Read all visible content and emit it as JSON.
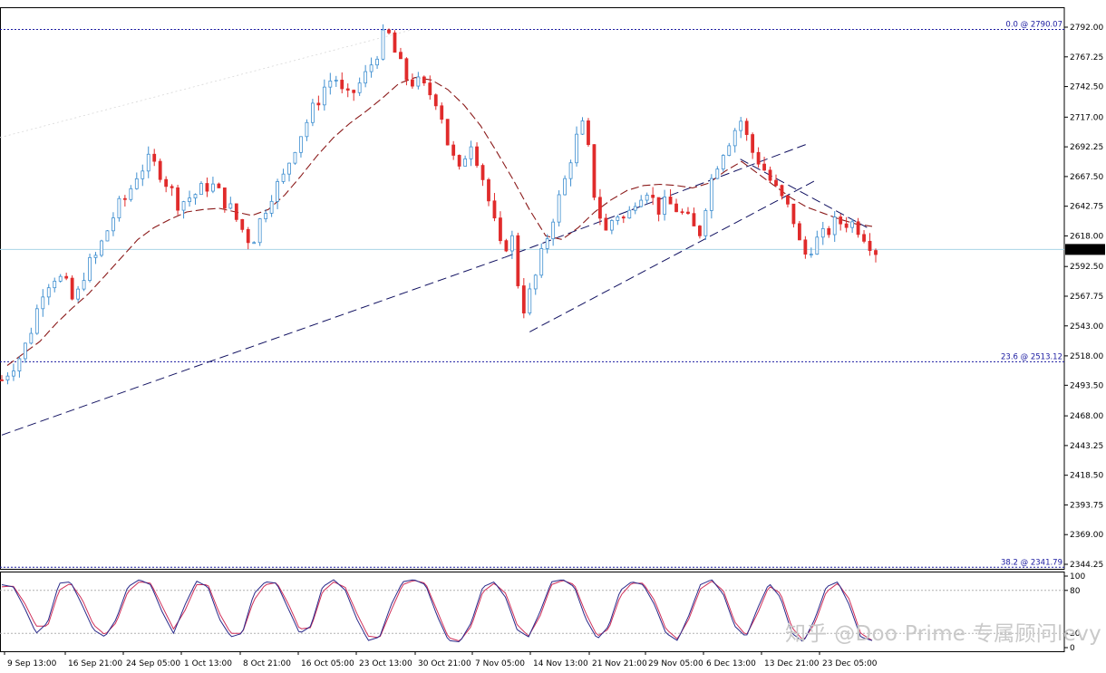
{
  "chart_data": [
    {
      "type": "candlestick",
      "current_price": "2606.72",
      "y_axis_ticks": [
        "2792.00",
        "2767.25",
        "2742.50",
        "2717.00",
        "2692.25",
        "2667.50",
        "2642.75",
        "2618.00",
        "2592.50",
        "2567.75",
        "2543.00",
        "2518.00",
        "2493.50",
        "2468.00",
        "2443.25",
        "2418.50",
        "2393.75",
        "2369.00",
        "2344.25"
      ],
      "x_axis_ticks": [
        "9 Sep 13:00",
        "16 Sep 21:00",
        "24 Sep 05:00",
        "1 Oct 13:00",
        "8 Oct 21:00",
        "16 Oct 05:00",
        "23 Oct 13:00",
        "30 Oct 21:00",
        "7 Nov 05:00",
        "14 Nov 13:00",
        "21 Nov 21:00",
        "29 Nov 05:00",
        "6 Dec 13:00",
        "13 Dec 21:00",
        "23 Dec 05:00"
      ],
      "fibonacci_levels": [
        {
          "label": "0.0 @ 2790.07",
          "price": 2790.07
        },
        {
          "label": "23.6 @ 2513.12",
          "price": 2513.12
        },
        {
          "label": "38.2 @ 2341.79",
          "price": 2341.79
        }
      ],
      "close_series": [
        2498,
        2510,
        2520,
        2545,
        2575,
        2585,
        2580,
        2560,
        2590,
        2600,
        2620,
        2640,
        2650,
        2670,
        2680,
        2675,
        2660,
        2645,
        2650,
        2655,
        2662,
        2652,
        2640,
        2625,
        2612,
        2635,
        2655,
        2665,
        2690,
        2708,
        2725,
        2742,
        2752,
        2730,
        2740,
        2752,
        2770,
        2790,
        2765,
        2748,
        2745,
        2738,
        2730,
        2690,
        2670,
        2700,
        2675,
        2640,
        2605,
        2618,
        2555,
        2575,
        2605,
        2635,
        2660,
        2695,
        2712,
        2650,
        2620,
        2638,
        2630,
        2652,
        2658,
        2640,
        2645,
        2640,
        2630,
        2618,
        2660,
        2685,
        2700,
        2715,
        2690,
        2678,
        2662,
        2648,
        2635,
        2600,
        2612,
        2618,
        2628,
        2630,
        2628,
        2618,
        2606
      ],
      "moving_average": [
        2510,
        2520,
        2530,
        2545,
        2558,
        2570,
        2585,
        2600,
        2615,
        2625,
        2632,
        2638,
        2640,
        2641,
        2638,
        2635,
        2640,
        2652,
        2668,
        2685,
        2700,
        2712,
        2722,
        2733,
        2745,
        2750,
        2748,
        2740,
        2727,
        2710,
        2688,
        2665,
        2640,
        2618,
        2615,
        2625,
        2638,
        2648,
        2656,
        2660,
        2661,
        2660,
        2658,
        2662,
        2672,
        2680,
        2670,
        2660,
        2650,
        2642,
        2637,
        2632,
        2628,
        2626
      ],
      "trendlines": [
        "long-term support",
        "short-term support",
        "channel resistance"
      ],
      "ylim": [
        2344.25,
        2792.0
      ]
    },
    {
      "type": "line",
      "name": "stochastic",
      "y_axis_ticks": [
        "100",
        "80",
        "20",
        "0"
      ],
      "ylim": [
        0,
        100
      ],
      "stoch_k": [
        88,
        85,
        55,
        20,
        35,
        90,
        92,
        60,
        25,
        15,
        40,
        85,
        95,
        88,
        50,
        20,
        60,
        93,
        85,
        40,
        15,
        20,
        75,
        92,
        90,
        55,
        20,
        30,
        85,
        95,
        80,
        40,
        10,
        15,
        60,
        92,
        95,
        88,
        45,
        10,
        8,
        35,
        85,
        92,
        70,
        25,
        15,
        50,
        92,
        95,
        85,
        40,
        12,
        30,
        80,
        92,
        88,
        60,
        20,
        10,
        45,
        88,
        95,
        75,
        30,
        15,
        55,
        90,
        70,
        20,
        8,
        40,
        85,
        92,
        60,
        15,
        10
      ],
      "stoch_d": [
        85,
        86,
        62,
        30,
        30,
        80,
        90,
        68,
        32,
        18,
        35,
        78,
        92,
        90,
        58,
        26,
        52,
        88,
        88,
        48,
        20,
        20,
        66,
        88,
        91,
        62,
        26,
        28,
        78,
        92,
        84,
        48,
        16,
        14,
        52,
        88,
        94,
        90,
        52,
        14,
        9,
        30,
        78,
        90,
        76,
        32,
        16,
        44,
        88,
        94,
        88,
        48,
        16,
        26,
        72,
        90,
        90,
        66,
        26,
        12,
        40,
        82,
        93,
        80,
        36,
        17,
        48,
        86,
        76,
        28,
        10,
        34,
        78,
        90,
        68,
        20,
        10
      ]
    }
  ],
  "watermark": "知乎 @Doo Prime 专属顾问levy"
}
